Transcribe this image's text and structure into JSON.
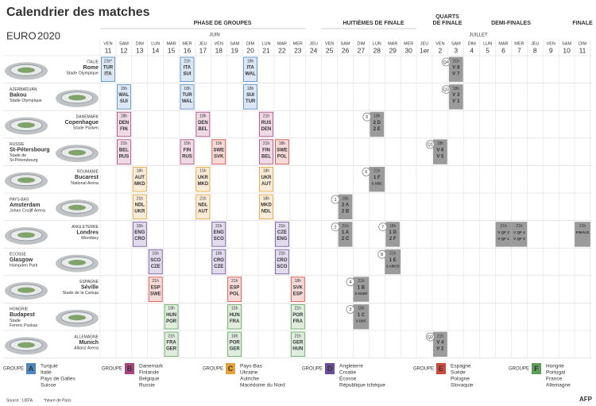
{
  "title": "Calendrier des matches",
  "logo": {
    "text": "EURO",
    "year": "2020"
  },
  "phases": [
    [
      "PHASE DE GROUPES"
    ],
    [
      "HUITIÈMES DE FINALE"
    ],
    [
      "QUARTS",
      "DE FINALE"
    ],
    [
      "DEMI-FINALES"
    ],
    [
      "FINALE"
    ]
  ],
  "months": [
    "JUIN",
    "JUILLET"
  ],
  "days": [
    {
      "weekday": "VEN",
      "date": "11"
    },
    {
      "weekday": "SAM",
      "date": "12"
    },
    {
      "weekday": "DIM",
      "date": "13"
    },
    {
      "weekday": "LUN",
      "date": "14"
    },
    {
      "weekday": "MAR",
      "date": "15"
    },
    {
      "weekday": "MER",
      "date": "16"
    },
    {
      "weekday": "JEU",
      "date": "17"
    },
    {
      "weekday": "VEN",
      "date": "18"
    },
    {
      "weekday": "SAM",
      "date": "19"
    },
    {
      "weekday": "DIM",
      "date": "20"
    },
    {
      "weekday": "LUN",
      "date": "21"
    },
    {
      "weekday": "MAR",
      "date": "22"
    },
    {
      "weekday": "MER",
      "date": "23"
    },
    {
      "weekday": "JEU",
      "date": "24"
    },
    {
      "weekday": "VEN",
      "date": "25"
    },
    {
      "weekday": "SAM",
      "date": "26"
    },
    {
      "weekday": "DIM",
      "date": "27"
    },
    {
      "weekday": "LUN",
      "date": "28"
    },
    {
      "weekday": "MAR",
      "date": "29"
    },
    {
      "weekday": "MER",
      "date": "30"
    },
    {
      "weekday": "JEU",
      "date": "1er"
    },
    {
      "weekday": "VEN",
      "date": "2"
    },
    {
      "weekday": "SAM",
      "date": "3"
    },
    {
      "weekday": "DIM",
      "date": "4"
    },
    {
      "weekday": "LUN",
      "date": "5"
    },
    {
      "weekday": "MAR",
      "date": "6"
    },
    {
      "weekday": "MER",
      "date": "7"
    },
    {
      "weekday": "JEU",
      "date": "8"
    },
    {
      "weekday": "VEN",
      "date": "9"
    },
    {
      "weekday": "SAM",
      "date": "10"
    },
    {
      "weekday": "DIM",
      "date": "11"
    }
  ],
  "knockout_color": "#9b9b9b",
  "venues": [
    {
      "country": "ITALIE",
      "city": "Rome",
      "stadium": [
        "Stade Olympique"
      ],
      "schedule": [
        {
          "time": "21h*",
          "teams": [
            "TUR",
            "ITA"
          ],
          "group": "A"
        },
        null,
        null,
        null,
        null,
        {
          "time": "21h",
          "teams": [
            "ITA",
            "SUI"
          ],
          "group": "A"
        },
        null,
        null,
        null,
        {
          "time": "18h",
          "teams": [
            "ITA",
            "WAL"
          ],
          "group": "A"
        },
        null,
        null,
        null,
        null,
        null,
        null,
        null,
        null,
        null,
        null,
        null,
        null,
        {
          "match": "Q4",
          "time": "21h",
          "teams": [
            "V 8",
            "V 7"
          ]
        },
        null,
        null,
        null,
        null,
        null,
        null,
        null,
        null
      ]
    },
    {
      "country": "AZERBAÏDJAN",
      "city": "Bakou",
      "stadium": [
        "Stade Olympique"
      ],
      "schedule": [
        null,
        {
          "time": "15h",
          "teams": [
            "WAL",
            "SUI"
          ],
          "group": "A"
        },
        null,
        null,
        null,
        {
          "time": "18h",
          "teams": [
            "TUR",
            "WAL"
          ],
          "group": "A"
        },
        null,
        null,
        null,
        {
          "time": "18h",
          "teams": [
            "SUI",
            "TUR"
          ],
          "group": "A"
        },
        null,
        null,
        null,
        null,
        null,
        null,
        null,
        null,
        null,
        null,
        null,
        null,
        {
          "match": "Q3",
          "time": "18h",
          "teams": [
            "V 3",
            "V 1"
          ]
        },
        null,
        null,
        null,
        null,
        null,
        null,
        null,
        null
      ]
    },
    {
      "country": "DANEMARK",
      "city": "Copenhague",
      "stadium": [
        "Stade Parken"
      ],
      "schedule": [
        null,
        {
          "time": "18h",
          "teams": [
            "DEN",
            "FIN"
          ],
          "group": "B"
        },
        null,
        null,
        null,
        null,
        {
          "time": "18h",
          "teams": [
            "DEN",
            "BEL"
          ],
          "group": "B"
        },
        null,
        null,
        null,
        {
          "time": "21h",
          "teams": [
            "RUS",
            "DEN"
          ],
          "group": "B"
        },
        null,
        null,
        null,
        null,
        null,
        null,
        {
          "match": "5",
          "time": "18h",
          "teams": [
            "2 D",
            "2 E"
          ]
        },
        null,
        null,
        null,
        null,
        null,
        null,
        null,
        null,
        null,
        null,
        null,
        null,
        null
      ]
    },
    {
      "country": "RUSSIE",
      "city": "St-Pétersbourg",
      "stadium": [
        "Stade de",
        "St-Pétersbourg"
      ],
      "schedule": [
        null,
        {
          "time": "21h",
          "teams": [
            "BEL",
            "RUS"
          ],
          "group": "B"
        },
        null,
        null,
        null,
        {
          "time": "15h",
          "teams": [
            "FIN",
            "RUS"
          ],
          "group": "B"
        },
        null,
        {
          "time": "15h",
          "teams": [
            "SWE",
            "SVK"
          ],
          "group": "E"
        },
        null,
        null,
        {
          "time": "21h",
          "teams": [
            "FIN",
            "BEL"
          ],
          "group": "B"
        },
        {
          "time": "18h",
          "teams": [
            "SWE",
            "POL"
          ],
          "group": "E"
        },
        null,
        null,
        null,
        null,
        null,
        null,
        null,
        null,
        null,
        {
          "match": "Q1",
          "time": "18h",
          "teams": [
            "V 6",
            "V 5"
          ]
        },
        null,
        null,
        null,
        null,
        null,
        null,
        null,
        null,
        null
      ]
    },
    {
      "country": "ROUMANIE",
      "city": "Bucarest",
      "stadium": [
        "National Arena"
      ],
      "schedule": [
        null,
        null,
        {
          "time": "18h",
          "teams": [
            "AUT",
            "MKD"
          ],
          "group": "C"
        },
        null,
        null,
        null,
        {
          "time": "15h",
          "teams": [
            "UKR",
            "MKD"
          ],
          "group": "C"
        },
        null,
        null,
        null,
        {
          "time": "18h",
          "teams": [
            "UKR",
            "AUT"
          ],
          "group": "C"
        },
        null,
        null,
        null,
        null,
        null,
        null,
        {
          "match": "6",
          "time": "21h",
          "teams": [
            "1 F",
            "3 ABC"
          ]
        },
        null,
        null,
        null,
        null,
        null,
        null,
        null,
        null,
        null,
        null,
        null,
        null,
        null
      ]
    },
    {
      "country": "PAYS-BAS",
      "city": "Amsterdam",
      "stadium": [
        "Johan Cruijff Arena"
      ],
      "schedule": [
        null,
        null,
        {
          "time": "21h",
          "teams": [
            "NDL",
            "UKR"
          ],
          "group": "C"
        },
        null,
        null,
        null,
        {
          "time": "21h",
          "teams": [
            "NDL",
            "AUT"
          ],
          "group": "C"
        },
        null,
        null,
        null,
        {
          "time": "18h",
          "teams": [
            "MKD",
            "NDL"
          ],
          "group": "C"
        },
        null,
        null,
        null,
        null,
        {
          "match": "1",
          "time": "18h",
          "teams": [
            "2 A",
            "2 B"
          ]
        },
        null,
        null,
        null,
        null,
        null,
        null,
        null,
        null,
        null,
        null,
        null,
        null,
        null,
        null,
        null
      ]
    },
    {
      "country": "ANGLETERRE",
      "city": "Londres",
      "stadium": [
        "Wembley"
      ],
      "schedule": [
        null,
        null,
        {
          "time": "15h",
          "teams": [
            "ENG",
            "CRO"
          ],
          "group": "D"
        },
        null,
        null,
        null,
        null,
        {
          "time": "21h",
          "teams": [
            "ENG",
            "SCO"
          ],
          "group": "D"
        },
        null,
        null,
        null,
        {
          "time": "21h",
          "teams": [
            "CZE",
            "ENG"
          ],
          "group": "D"
        },
        null,
        null,
        null,
        {
          "match": "2",
          "time": "21h",
          "teams": [
            "1 A",
            "2 C"
          ]
        },
        null,
        null,
        {
          "match": "7",
          "time": "18h",
          "teams": [
            "1 D",
            "2 F"
          ]
        },
        null,
        null,
        null,
        null,
        null,
        null,
        {
          "time": "21h",
          "teams": [
            "V QF 2",
            "V QF 1"
          ]
        },
        {
          "time": "21h",
          "teams": [
            "V QF 4",
            "V QF 3"
          ]
        },
        null,
        null,
        null,
        {
          "time": "21h",
          "teams": [
            "FINALE"
          ]
        }
      ]
    },
    {
      "country": "ÉCOSSE",
      "city": "Glasgow",
      "stadium": [
        "Hampden Park"
      ],
      "schedule": [
        null,
        null,
        null,
        {
          "time": "15h",
          "teams": [
            "SCO",
            "CZE"
          ],
          "group": "D"
        },
        null,
        null,
        null,
        {
          "time": "18h",
          "teams": [
            "CRO",
            "CZE"
          ],
          "group": "D"
        },
        null,
        null,
        null,
        {
          "time": "21h",
          "teams": [
            "CRO",
            "SCO"
          ],
          "group": "D"
        },
        null,
        null,
        null,
        null,
        null,
        null,
        {
          "match": "8",
          "time": "21h",
          "teams": [
            "1 E",
            "3 ABCD"
          ]
        },
        null,
        null,
        null,
        null,
        null,
        null,
        null,
        null,
        null,
        null,
        null,
        null
      ]
    },
    {
      "country": "ESPAGNE",
      "city": "Séville",
      "stadium": [
        "Stade de la Cartuja"
      ],
      "schedule": [
        null,
        null,
        null,
        {
          "time": "21h",
          "teams": [
            "ESP",
            "SWE"
          ],
          "group": "E"
        },
        null,
        null,
        null,
        null,
        {
          "time": "21h",
          "teams": [
            "ESP",
            "POL"
          ],
          "group": "E"
        },
        null,
        null,
        null,
        {
          "time": "18h",
          "teams": [
            "SVK",
            "ESP"
          ],
          "group": "E"
        },
        null,
        null,
        null,
        {
          "match": "4",
          "time": "21h",
          "teams": [
            "1 B",
            "3 ADEF"
          ]
        },
        null,
        null,
        null,
        null,
        null,
        null,
        null,
        null,
        null,
        null,
        null,
        null,
        null,
        null
      ]
    },
    {
      "country": "HONGRIE",
      "city": "Budapest",
      "stadium": [
        "Stade",
        "Ferenc Puskas"
      ],
      "schedule": [
        null,
        null,
        null,
        null,
        {
          "time": "18h",
          "teams": [
            "HUN",
            "POR"
          ],
          "group": "F"
        },
        null,
        null,
        null,
        {
          "time": "15h",
          "teams": [
            "HUN",
            "FRA"
          ],
          "group": "F"
        },
        null,
        null,
        null,
        {
          "time": "21h",
          "teams": [
            "POR",
            "FRA"
          ],
          "group": "F"
        },
        null,
        null,
        null,
        {
          "match": "3",
          "time": "18h",
          "teams": [
            "1 C",
            "3 DEF"
          ]
        },
        null,
        null,
        null,
        null,
        null,
        null,
        null,
        null,
        null,
        null,
        null,
        null,
        null,
        null
      ]
    },
    {
      "country": "ALLEMAGNE",
      "city": "Munich",
      "stadium": [
        "Allianz Arena"
      ],
      "schedule": [
        null,
        null,
        null,
        null,
        {
          "time": "21h",
          "teams": [
            "FRA",
            "GER"
          ],
          "group": "F"
        },
        null,
        null,
        null,
        {
          "time": "18h",
          "teams": [
            "POR",
            "GER"
          ],
          "group": "F"
        },
        null,
        null,
        null,
        {
          "time": "21h",
          "teams": [
            "GER",
            "HUN"
          ],
          "group": "F"
        },
        null,
        null,
        null,
        null,
        null,
        null,
        null,
        null,
        {
          "match": "Q2",
          "time": "21h",
          "teams": [
            "V 4",
            "V 2"
          ]
        },
        null,
        null,
        null,
        null,
        null,
        null,
        null,
        null,
        null
      ]
    }
  ],
  "groups": [
    {
      "prefix": "GROUPE",
      "letter": "A",
      "color": "#4f86c6",
      "teams": [
        "Turquie",
        "Italie",
        "Pays de Galles",
        "Suisse"
      ]
    },
    {
      "prefix": "GROUPE",
      "letter": "B",
      "color": "#a9447f",
      "teams": [
        "Danemark",
        "Finlande",
        "Belgique",
        "Russie"
      ]
    },
    {
      "prefix": "GROUPE",
      "letter": "C",
      "color": "#e3a23a",
      "teams": [
        "Pays-Bas",
        "Ukraine",
        "Autriche",
        "Macédoine du Nord"
      ]
    },
    {
      "prefix": "GROUPE",
      "letter": "D",
      "color": "#6a4c9c",
      "teams": [
        "Angleterre",
        "Croatie",
        "Écosse",
        "République tchèque"
      ]
    },
    {
      "prefix": "GROUPE",
      "letter": "E",
      "color": "#d3473a",
      "teams": [
        "Espagne",
        "Suède",
        "Pologne",
        "Slovaquie"
      ]
    },
    {
      "prefix": "GROUPE",
      "letter": "F",
      "color": "#5d9e58",
      "teams": [
        "Hongrie",
        "Portugal",
        "France",
        "Allemagne"
      ]
    }
  ],
  "source": "Source : UEFA",
  "note": "*heure de Paris",
  "credit": "AFP"
}
